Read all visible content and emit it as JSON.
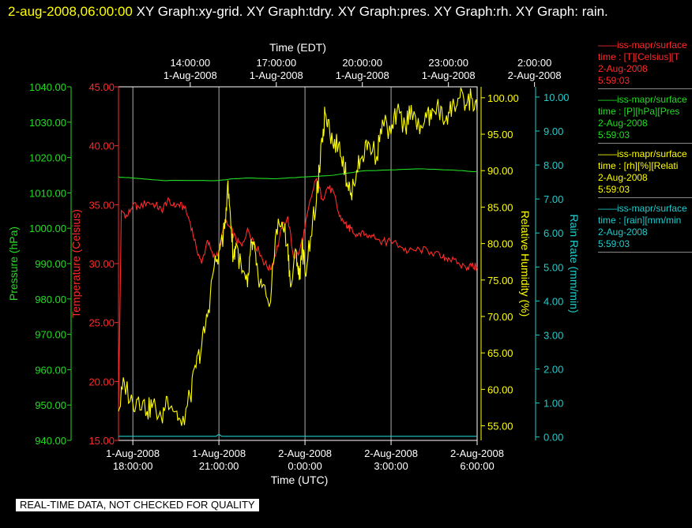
{
  "header": {
    "timestamp": "2-aug-2008,06:00:00",
    "title": "XY Graph:xy-grid.  XY Graph:tdry.  XY Graph:pres.  XY Graph:rh.  XY Graph: rain."
  },
  "banner": "REAL-TIME DATA, NOT CHECKED FOR QUALITY",
  "legend": [
    {
      "line1": "——iss-mapr/surface",
      "line2": "time : [T][Celsius][T",
      "line3": "2-Aug-2008",
      "line4": "5:59:03",
      "color": "#ff2a2a"
    },
    {
      "line1": "——iss-mapr/surface",
      "line2": "time : [P][hPa][Pres",
      "line3": "2-Aug-2008",
      "line4": "5:59:03",
      "color": "#22dd22"
    },
    {
      "line1": "——iss-mapr/surface",
      "line2": "time : [rh][%][Relati",
      "line3": "2-Aug-2008",
      "line4": "5:59:03",
      "color": "#ffff00"
    },
    {
      "line1": "——iss-mapr/surface",
      "line2": "time : [rain][mm/min",
      "line3": "2-Aug-2008",
      "line4": "5:59:03",
      "color": "#22cccc"
    }
  ],
  "chart_data": {
    "type": "line",
    "x_top_title": "Time (EDT)",
    "x_bottom_title": "Time (UTC)",
    "x_range_utc_hours": [
      -6.5,
      6.0
    ],
    "x_top_ticks": [
      {
        "t": -4,
        "l1": "14:00:00",
        "l2": "1-Aug-2008"
      },
      {
        "t": -1,
        "l1": "17:00:00",
        "l2": "1-Aug-2008"
      },
      {
        "t": 2,
        "l1": "20:00:00",
        "l2": "1-Aug-2008"
      },
      {
        "t": 5,
        "l1": "23:00:00",
        "l2": "1-Aug-2008"
      },
      {
        "t": 8,
        "l1": "2:00:00",
        "l2": "2-Aug-2008"
      }
    ],
    "x_bottom_ticks": [
      {
        "t": -6,
        "l1": "1-Aug-2008",
        "l2": "18:00:00"
      },
      {
        "t": -3,
        "l1": "1-Aug-2008",
        "l2": "21:00:00"
      },
      {
        "t": 0,
        "l1": "2-Aug-2008",
        "l2": "0:00:00"
      },
      {
        "t": 3,
        "l1": "2-Aug-2008",
        "l2": "3:00:00"
      },
      {
        "t": 6,
        "l1": "2-Aug-2008",
        "l2": "6:00:00"
      }
    ],
    "axes": {
      "pressure": {
        "label": "Pressure (hPa)",
        "min": 940,
        "max": 1040,
        "ticks": [
          "940.00",
          "950.00",
          "960.00",
          "970.00",
          "980.00",
          "990.00",
          "1000.00",
          "1010.00",
          "1020.00",
          "1030.00",
          "1040.00"
        ],
        "color": "#22dd22"
      },
      "temperature": {
        "label": "Temperature (Celsius)",
        "min": 15,
        "max": 45,
        "ticks": [
          "15.00",
          "20.00",
          "25.00",
          "30.00",
          "35.00",
          "40.00",
          "45.00"
        ],
        "color": "#ff2a2a"
      },
      "rh": {
        "label": "Relative Humidity (%)",
        "min": 53,
        "max": 101.5,
        "ticks": [
          "55.00",
          "60.00",
          "65.00",
          "70.00",
          "75.00",
          "80.00",
          "85.00",
          "90.00",
          "95.00",
          "100.00"
        ],
        "color": "#ffff00"
      },
      "rain": {
        "label": "Rain Rate (mm/min)",
        "min": -0.1,
        "max": 10.3,
        "ticks": [
          "0.00",
          "1.00",
          "2.00",
          "3.00",
          "4.00",
          "5.00",
          "6.00",
          "7.00",
          "8.00",
          "9.00",
          "10.00"
        ],
        "color": "#22cccc"
      }
    },
    "series": [
      {
        "axis": "temperature",
        "color": "#ff2a2a",
        "x": [
          -6.5,
          -6.4,
          -6.2,
          -6.0,
          -5.8,
          -5.5,
          -5.2,
          -5.0,
          -4.8,
          -4.6,
          -4.4,
          -4.2,
          -4.0,
          -3.8,
          -3.6,
          -3.4,
          -3.2,
          -3.0,
          -2.8,
          -2.6,
          -2.4,
          -2.2,
          -2.0,
          -1.8,
          -1.6,
          -1.4,
          -1.2,
          -1.0,
          -0.8,
          -0.6,
          -0.4,
          -0.2,
          0.0,
          0.2,
          0.4,
          0.6,
          0.8,
          1.0,
          1.2,
          1.4,
          1.5,
          1.6,
          1.8,
          2.0,
          2.2,
          2.4,
          2.6,
          2.8,
          3.0,
          3.3,
          3.6,
          4.0,
          4.4,
          4.8,
          5.0,
          5.3,
          5.6,
          5.8,
          6.0
        ],
        "y": [
          17.5,
          34.5,
          34.0,
          35.0,
          34.8,
          35.2,
          35.0,
          34.5,
          35.3,
          34.9,
          35.0,
          34.7,
          33.5,
          31.5,
          30.0,
          32.0,
          30.5,
          31.0,
          33.5,
          33.0,
          32.0,
          31.5,
          33.0,
          32.0,
          31.0,
          30.0,
          29.5,
          31.0,
          33.0,
          34.0,
          30.5,
          31.0,
          33.0,
          35.5,
          37.2,
          35.5,
          36.5,
          36.0,
          34.0,
          33.5,
          33.0,
          33.0,
          32.5,
          32.8,
          32.2,
          32.5,
          32.0,
          31.8,
          31.9,
          31.5,
          31.0,
          31.2,
          31.0,
          30.5,
          30.5,
          30.0,
          29.7,
          29.8,
          29.7
        ]
      },
      {
        "axis": "pressure",
        "color": "#22dd22",
        "x": [
          -6.5,
          -6.0,
          -5.0,
          -4.0,
          -3.0,
          -2.5,
          -2.0,
          -1.0,
          0.0,
          1.0,
          2.0,
          3.0,
          4.0,
          5.0,
          6.0
        ],
        "y": [
          1014.5,
          1014.2,
          1013.5,
          1013.5,
          1013.5,
          1014.0,
          1014.2,
          1014.0,
          1014.5,
          1015.0,
          1016.2,
          1016.5,
          1016.8,
          1016.5,
          1016.0
        ]
      },
      {
        "axis": "rh",
        "color": "#ffff00",
        "x": [
          -6.5,
          -6.3,
          -6.0,
          -5.8,
          -5.5,
          -5.3,
          -5.0,
          -4.8,
          -4.5,
          -4.3,
          -4.0,
          -3.8,
          -3.6,
          -3.4,
          -3.2,
          -3.0,
          -2.8,
          -2.7,
          -2.6,
          -2.5,
          -2.4,
          -2.2,
          -2.0,
          -1.9,
          -1.8,
          -1.7,
          -1.5,
          -1.2,
          -1.0,
          -0.8,
          -0.6,
          -0.5,
          -0.3,
          -0.2,
          -0.1,
          0.0,
          0.2,
          0.4,
          0.5,
          0.6,
          0.7,
          0.8,
          1.0,
          1.2,
          1.4,
          1.5,
          1.6,
          1.8,
          2.0,
          2.2,
          2.5,
          2.7,
          3.0,
          3.2,
          3.5,
          3.7,
          4.0,
          4.2,
          4.4,
          4.6,
          4.8,
          5.0,
          5.2,
          5.4,
          5.6,
          5.8,
          6.0
        ],
        "y": [
          57,
          61,
          58,
          59,
          57,
          58,
          56,
          59,
          57,
          55,
          59,
          63,
          66,
          70,
          76,
          79,
          82,
          88,
          84,
          78,
          80,
          76,
          74,
          79,
          80,
          77,
          74,
          72,
          82,
          83,
          80,
          74,
          79,
          75,
          80,
          76,
          81,
          86,
          90,
          94,
          98,
          97,
          93,
          94,
          90,
          88,
          87,
          90,
          92,
          94,
          92,
          97,
          95,
          98,
          96,
          99,
          95,
          98,
          97,
          99,
          97,
          98,
          99,
          100,
          99,
          100,
          98
        ]
      },
      {
        "axis": "rain",
        "color": "#22cccc",
        "x": [
          -6.5,
          -3.1,
          -3.0,
          -2.9,
          6.0
        ],
        "y": [
          0.02,
          0.02,
          0.08,
          0.02,
          0.02
        ]
      }
    ]
  }
}
